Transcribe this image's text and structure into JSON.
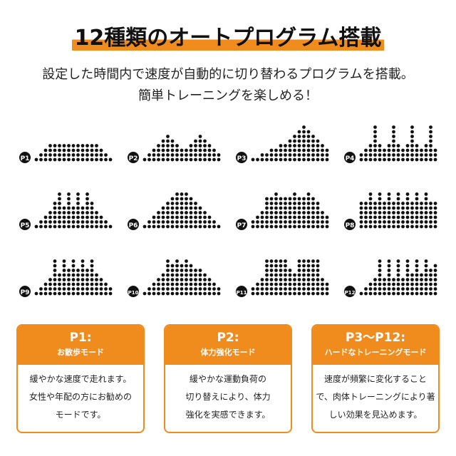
{
  "header": {
    "title": "12種類のオートプログラム搭載",
    "subtitle": [
      "設定した時間内で速度が自動的に切り替わるプログラムを搭載。",
      "簡単トレーニングを楽しめる！"
    ]
  },
  "programs": [
    "P1",
    "P2",
    "P3",
    "P4",
    "P5",
    "P6",
    "P7",
    "P8",
    "P9",
    "P10",
    "P11",
    "P12"
  ],
  "cards": [
    {
      "code": "P1:",
      "mode": "お散歩モード",
      "lines": [
        "緩やかな速度で走れます。",
        "女性や年配の方にお勧めの",
        "モードです。"
      ]
    },
    {
      "code": "P2:",
      "mode": "体力強化モード",
      "lines": [
        "緩やかな運動負荷の",
        "切り替えにより、体力",
        "強化を実感できます。"
      ]
    },
    {
      "code": "P3～P12:",
      "mode": "ハードなトレーニングモード",
      "lines": [
        "速度が頻繁に変化すること",
        "で、肉体トレーニングにより著",
        "しい効果を見込めます。"
      ]
    }
  ]
}
